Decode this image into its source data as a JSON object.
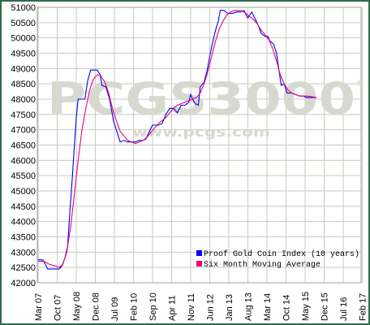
{
  "chart_data": {
    "type": "line",
    "title": "",
    "xlabel": "",
    "ylabel": "",
    "ylim": [
      42000,
      51000
    ],
    "grid": true,
    "legend_position": "bottom-right",
    "y_ticks": [
      42000,
      42500,
      43000,
      43500,
      44000,
      44500,
      45000,
      45500,
      46000,
      46500,
      47000,
      47500,
      48000,
      48500,
      49000,
      49500,
      50000,
      50500,
      51000
    ],
    "x_ticks": [
      "Mar 07",
      "Oct 07",
      "May 08",
      "Dec 08",
      "Jul 09",
      "Feb 10",
      "Sep 10",
      "Apr 11",
      "Nov 11",
      "Jun 12",
      "Jan 13",
      "Aug 13",
      "Mar 14",
      "Oct 14",
      "May 15",
      "Dec 15",
      "Jul 16",
      "Feb 17"
    ],
    "series": [
      {
        "name": "Proof Gold Coin Index (10 years)",
        "color": "#0000ff",
        "points": [
          [
            0,
            42750
          ],
          [
            0.25,
            42750
          ],
          [
            0.5,
            42450
          ],
          [
            0.85,
            42450
          ],
          [
            1.1,
            42450
          ],
          [
            1.25,
            42550
          ],
          [
            1.4,
            42800
          ],
          [
            1.55,
            43200
          ],
          [
            1.65,
            44200
          ],
          [
            1.8,
            45500
          ],
          [
            1.9,
            46500
          ],
          [
            2,
            47400
          ],
          [
            2.1,
            48000
          ],
          [
            2.3,
            48000
          ],
          [
            2.45,
            48000
          ],
          [
            2.6,
            48600
          ],
          [
            2.75,
            48950
          ],
          [
            3.1,
            48950
          ],
          [
            3.25,
            48800
          ],
          [
            3.35,
            48450
          ],
          [
            3.55,
            48400
          ],
          [
            3.75,
            48000
          ],
          [
            3.95,
            47300
          ],
          [
            4.1,
            47000
          ],
          [
            4.2,
            46800
          ],
          [
            4.3,
            46600
          ],
          [
            4.5,
            46650
          ],
          [
            4.7,
            46600
          ],
          [
            4.9,
            46600
          ],
          [
            5.1,
            46600
          ],
          [
            5.3,
            46650
          ],
          [
            5.5,
            46650
          ],
          [
            5.65,
            46700
          ],
          [
            5.8,
            46900
          ],
          [
            6,
            47150
          ],
          [
            6.3,
            47150
          ],
          [
            6.5,
            47200
          ],
          [
            6.7,
            47500
          ],
          [
            6.9,
            47700
          ],
          [
            7.1,
            47700
          ],
          [
            7.3,
            47550
          ],
          [
            7.5,
            47800
          ],
          [
            7.7,
            47800
          ],
          [
            7.9,
            47900
          ],
          [
            8,
            48150
          ],
          [
            8.1,
            48000
          ],
          [
            8.25,
            47850
          ],
          [
            8.4,
            47800
          ],
          [
            8.5,
            48400
          ],
          [
            8.7,
            48550
          ],
          [
            8.85,
            48900
          ],
          [
            9,
            49400
          ],
          [
            9.15,
            49850
          ],
          [
            9.3,
            50250
          ],
          [
            9.45,
            50550
          ],
          [
            9.55,
            50900
          ],
          [
            9.75,
            50900
          ],
          [
            9.95,
            50800
          ],
          [
            10.2,
            50800
          ],
          [
            10.4,
            50850
          ],
          [
            10.6,
            50850
          ],
          [
            10.8,
            50900
          ],
          [
            10.9,
            50750
          ],
          [
            11,
            50650
          ],
          [
            11.2,
            50850
          ],
          [
            11.4,
            50600
          ],
          [
            11.55,
            50400
          ],
          [
            11.7,
            50150
          ],
          [
            11.9,
            50050
          ],
          [
            12.05,
            50050
          ],
          [
            12.15,
            49900
          ],
          [
            12.35,
            49800
          ],
          [
            12.5,
            49500
          ],
          [
            12.65,
            48850
          ],
          [
            12.75,
            48450
          ],
          [
            12.9,
            48500
          ],
          [
            13.05,
            48200
          ],
          [
            13.3,
            48200
          ],
          [
            13.5,
            48150
          ],
          [
            13.7,
            48100
          ],
          [
            13.9,
            48100
          ],
          [
            14.1,
            48050
          ],
          [
            14.35,
            48050
          ],
          [
            14.6,
            48050
          ]
        ]
      },
      {
        "name": "Six Month Moving Average",
        "color": "#ee0077",
        "points": [
          [
            0,
            42700
          ],
          [
            0.3,
            42700
          ],
          [
            0.6,
            42600
          ],
          [
            0.9,
            42550
          ],
          [
            1.1,
            42500
          ],
          [
            1.3,
            42600
          ],
          [
            1.5,
            43000
          ],
          [
            1.7,
            43800
          ],
          [
            1.9,
            44900
          ],
          [
            2.1,
            46000
          ],
          [
            2.3,
            47000
          ],
          [
            2.5,
            47700
          ],
          [
            2.7,
            48300
          ],
          [
            2.9,
            48650
          ],
          [
            3.1,
            48800
          ],
          [
            3.3,
            48750
          ],
          [
            3.5,
            48550
          ],
          [
            3.7,
            48200
          ],
          [
            3.9,
            47700
          ],
          [
            4.1,
            47300
          ],
          [
            4.3,
            46950
          ],
          [
            4.5,
            46800
          ],
          [
            4.7,
            46650
          ],
          [
            4.9,
            46600
          ],
          [
            5.1,
            46550
          ],
          [
            5.3,
            46600
          ],
          [
            5.5,
            46650
          ],
          [
            5.7,
            46750
          ],
          [
            5.9,
            46900
          ],
          [
            6.1,
            47050
          ],
          [
            6.3,
            47200
          ],
          [
            6.5,
            47300
          ],
          [
            6.7,
            47400
          ],
          [
            6.9,
            47550
          ],
          [
            7.1,
            47700
          ],
          [
            7.3,
            47800
          ],
          [
            7.5,
            47850
          ],
          [
            7.7,
            47900
          ],
          [
            7.9,
            47950
          ],
          [
            8.1,
            48000
          ],
          [
            8.3,
            48050
          ],
          [
            8.5,
            48200
          ],
          [
            8.7,
            48500
          ],
          [
            8.9,
            48900
          ],
          [
            9.1,
            49400
          ],
          [
            9.3,
            49900
          ],
          [
            9.5,
            50300
          ],
          [
            9.7,
            50550
          ],
          [
            9.9,
            50750
          ],
          [
            10.1,
            50850
          ],
          [
            10.3,
            50900
          ],
          [
            10.5,
            50900
          ],
          [
            10.7,
            50880
          ],
          [
            10.9,
            50800
          ],
          [
            11.1,
            50700
          ],
          [
            11.3,
            50600
          ],
          [
            11.5,
            50450
          ],
          [
            11.7,
            50250
          ],
          [
            11.9,
            50100
          ],
          [
            12.1,
            49950
          ],
          [
            12.3,
            49650
          ],
          [
            12.5,
            49250
          ],
          [
            12.7,
            48800
          ],
          [
            12.9,
            48500
          ],
          [
            13.1,
            48300
          ],
          [
            13.3,
            48200
          ],
          [
            13.5,
            48150
          ],
          [
            13.7,
            48100
          ],
          [
            13.9,
            48100
          ],
          [
            14.1,
            48100
          ],
          [
            14.35,
            48080
          ],
          [
            14.6,
            48050
          ]
        ]
      }
    ],
    "legend_labels": [
      "Proof Gold Coin Index (10 years)",
      "Six Month Moving Average"
    ]
  },
  "watermark": {
    "brand": "PCGS3000",
    "registered": "®",
    "url": "www.pcgs.com"
  },
  "colors": {
    "frame": "#2e6b4a",
    "grid": "#c7ccbf",
    "background": "#ffffff",
    "watermark": "#d7d8cf"
  }
}
